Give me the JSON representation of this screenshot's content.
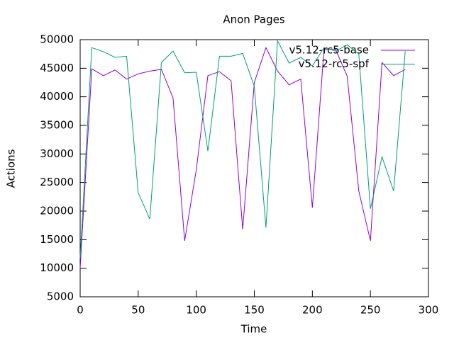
{
  "chart_data": {
    "type": "line",
    "title": "Anon Pages",
    "xlabel": "Time",
    "ylabel": "Actions",
    "x": [
      0,
      10,
      20,
      30,
      40,
      50,
      60,
      70,
      80,
      90,
      100,
      110,
      120,
      130,
      140,
      150,
      160,
      170,
      180,
      190,
      200,
      210,
      220,
      230,
      240,
      250,
      260,
      270,
      280
    ],
    "series": [
      {
        "name": "v5.12-rc5-base",
        "color": "#9400d3",
        "values": [
          10000,
          44900,
          43700,
          44700,
          43100,
          44000,
          44500,
          44800,
          39800,
          14800,
          27200,
          43700,
          44400,
          42800,
          16800,
          42500,
          48600,
          44500,
          42100,
          43100,
          20600,
          48300,
          48300,
          43600,
          23500,
          14800,
          46000,
          43700,
          44800
        ]
      },
      {
        "name": "v5.12-rc5-spf",
        "color": "#009e73",
        "values": [
          11700,
          48600,
          47900,
          46900,
          47100,
          23200,
          18600,
          46000,
          48000,
          44200,
          44300,
          30500,
          47100,
          47100,
          47600,
          41800,
          17100,
          49800,
          45900,
          46900,
          45400,
          48600,
          48000,
          49100,
          47500,
          20400,
          29500,
          23500,
          48000
        ]
      }
    ],
    "xlim": [
      0,
      300
    ],
    "xticks": [
      0,
      50,
      100,
      150,
      200,
      250,
      300
    ],
    "ylim": [
      5000,
      50000
    ],
    "yticks": [
      5000,
      10000,
      15000,
      20000,
      25000,
      30000,
      35000,
      40000,
      45000,
      50000
    ],
    "grid": false,
    "legend": "top-right"
  }
}
